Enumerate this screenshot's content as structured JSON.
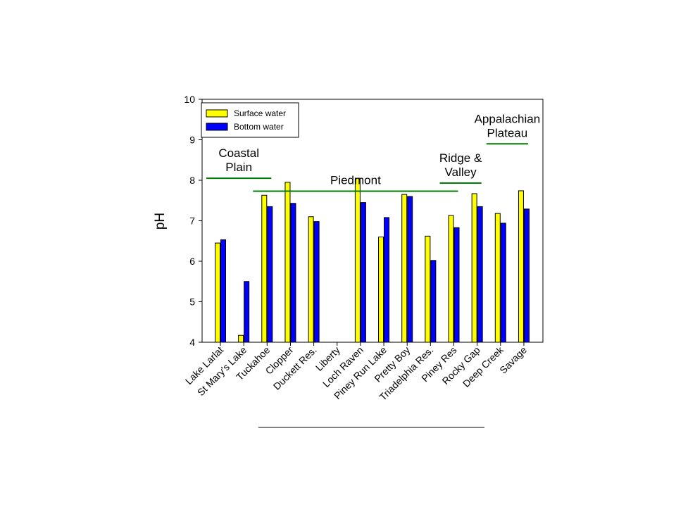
{
  "chart_data": {
    "type": "bar",
    "ylabel": "pH",
    "xlabel": "",
    "title": "",
    "ylim": [
      4,
      10
    ],
    "yticks": [
      4,
      5,
      6,
      7,
      8,
      9,
      10
    ],
    "grid": false,
    "legend_position": "top-left",
    "categories": [
      "Lake Larlat",
      "St Mary's Lake",
      "Tuckahoe",
      "Clopper",
      "Duckett Res.",
      "Liberty",
      "Loch Raven",
      "Piney Run Lake",
      "Pretty Boy",
      "Triadelphia Res.",
      "Piney Res",
      "Rocky Gap",
      "Deep Creek",
      "Savage"
    ],
    "series": [
      {
        "name": "Surface water",
        "color": "#ffff00",
        "values": [
          6.45,
          4.17,
          7.63,
          7.95,
          7.1,
          null,
          8.05,
          6.6,
          7.65,
          6.62,
          7.13,
          7.67,
          7.18,
          7.74
        ]
      },
      {
        "name": "Bottom water",
        "color": "#0000ff",
        "values": [
          6.53,
          5.5,
          7.35,
          7.43,
          6.98,
          null,
          7.45,
          7.08,
          7.6,
          6.02,
          6.83,
          7.35,
          6.94,
          7.29
        ]
      }
    ],
    "regions": [
      {
        "lines": [
          "Coastal",
          "Plain"
        ],
        "y": 8.05,
        "from": "Lake Larlat",
        "to": "Tuckahoe"
      },
      {
        "lines": [
          "Piedmont"
        ],
        "y": 7.73,
        "from": "Tuckahoe",
        "to": "Piney Res"
      },
      {
        "lines": [
          "Ridge &",
          "Valley"
        ],
        "y": 7.93,
        "from": "Piney Res",
        "to": "Rocky Gap"
      },
      {
        "lines": [
          "Appalachian",
          "Plateau"
        ],
        "y": 8.9,
        "from": "Deep Creek",
        "to": "Savage"
      }
    ],
    "region_line_color": "#008000"
  }
}
